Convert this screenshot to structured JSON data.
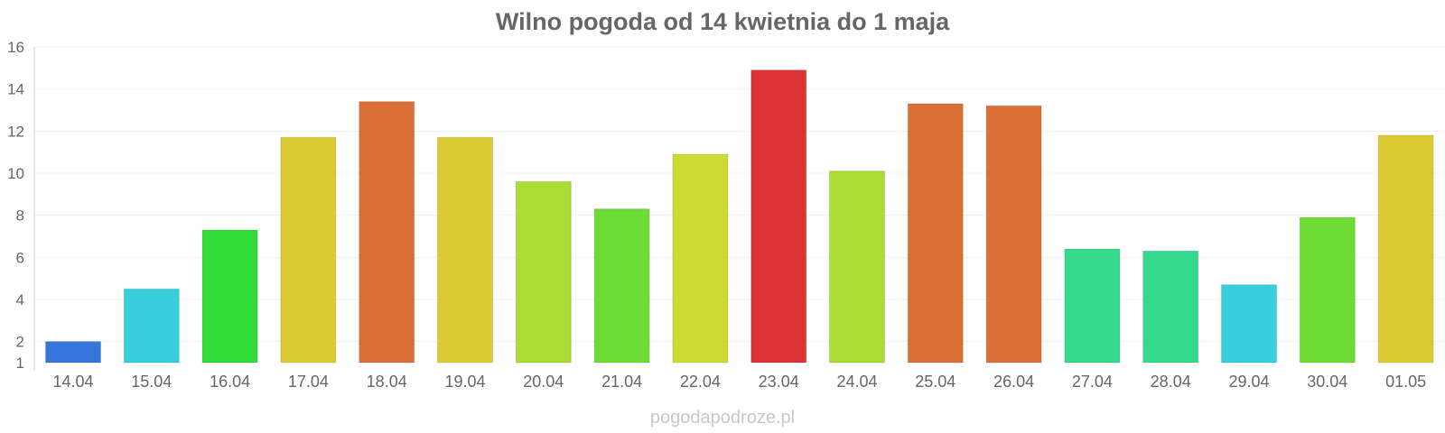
{
  "chart_data": {
    "type": "bar",
    "title": "Wilno pogoda od 14 kwietnia do 1 maja",
    "xlabel": "",
    "ylabel": "",
    "categories": [
      "14.04",
      "15.04",
      "16.04",
      "17.04",
      "18.04",
      "19.04",
      "20.04",
      "21.04",
      "22.04",
      "23.04",
      "24.04",
      "25.04",
      "26.04",
      "27.04",
      "28.04",
      "29.04",
      "30.04",
      "01.05"
    ],
    "values": [
      2.0,
      4.5,
      7.3,
      11.7,
      13.4,
      11.7,
      9.6,
      8.3,
      10.9,
      14.9,
      10.1,
      13.3,
      13.2,
      6.4,
      6.3,
      4.7,
      7.9,
      11.8
    ],
    "colors": [
      "#3476dc",
      "#36cfdb",
      "#34dc3a",
      "#dbca33",
      "#dc6f35",
      "#dbca33",
      "#abdc33",
      "#6ddd35",
      "#cedb33",
      "#dc3434",
      "#abdc33",
      "#dc6f35",
      "#dc6f35",
      "#35db8c",
      "#35db8c",
      "#36cfdb",
      "#6ddd35",
      "#dbca33"
    ],
    "ylim": [
      1,
      16
    ],
    "yticks": [
      1,
      2,
      4,
      6,
      8,
      10,
      12,
      14,
      16
    ],
    "grid": true,
    "legend": "none"
  },
  "credit": "pogodapodroze.pl"
}
